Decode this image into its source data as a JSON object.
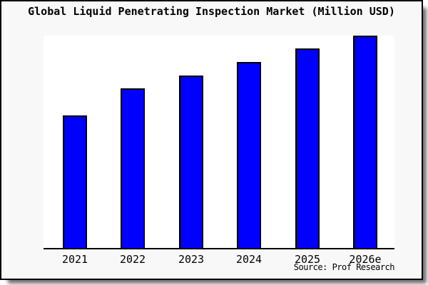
{
  "window": {
    "background_color": "#f8f8f8",
    "plot_background_color": "#ffffff",
    "border_color": "#000000"
  },
  "chart_data": {
    "type": "bar",
    "title": "Global Liquid Penetrating Inspection Market (Million USD)",
    "categories": [
      "2021",
      "2022",
      "2023",
      "2024",
      "2025",
      "2026e"
    ],
    "values": [
      62.4,
      75.2,
      81.2,
      87.6,
      94.0,
      100.0
    ],
    "xlabel": "",
    "ylabel": "",
    "ylim": [
      0,
      100
    ],
    "y_axis_shown": false,
    "grid": false,
    "legend": null,
    "bar_color": "#0000ff",
    "bar_border_color": "#000000",
    "source_label": "Source: Prof Research"
  }
}
